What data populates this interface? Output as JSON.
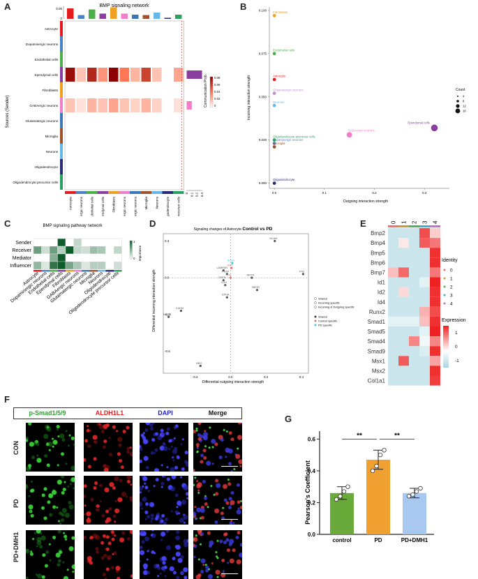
{
  "panels": {
    "A": "A",
    "B": "B",
    "C": "C",
    "D": "D",
    "E": "E",
    "F": "F",
    "G": "G"
  },
  "panelA": {
    "title": "BMP signaling network",
    "ylabel": "Sources (Sender)",
    "legend_title": "Communication Prob.",
    "legend_ticks": [
      "0.08",
      "0.06",
      "0.04",
      "0.02",
      "0"
    ],
    "top_ticks": [
      "0.05",
      "0"
    ],
    "right_ticks": [
      "0",
      "0.1",
      "0.2",
      "0.3"
    ],
    "senders": [
      "Astrocyte",
      "Dopaminergic neurons",
      "Endothelial cells",
      "Ependymal cells",
      "Fibroblasts",
      "GABAergic neurons",
      "Glutamatergic neurons",
      "Microglia",
      "Neurons",
      "Oligodendrocyte",
      "Oligodendrocyte precursor cells"
    ],
    "receivers": [
      "Astrocyte",
      "Dopaminergic neurons",
      "Endothelial cells",
      "Ependymal cells",
      "Fibroblasts",
      "GABAergic neurons",
      "Glutamatergic neurons",
      "Microglia",
      "Neurons",
      "Oligodendrocyte",
      "Oligodendrocyte precursor cells"
    ],
    "cell_colors": [
      "#e41a1c",
      "#4a82c4",
      "#4daf4a",
      "#8a3ea0",
      "#f0a020",
      "#f07ec8",
      "#3a78b8",
      "#a0522d",
      "#66b8e8",
      "#2a2a78",
      "#2ca060"
    ],
    "matrix": [
      [
        0,
        0,
        0,
        0,
        0,
        0,
        0,
        0,
        0,
        0,
        0
      ],
      [
        0,
        0,
        0,
        0,
        0,
        0,
        0,
        0,
        0,
        0,
        0
      ],
      [
        0,
        0,
        0,
        0,
        0,
        0,
        0,
        0,
        0,
        0,
        0
      ],
      [
        0.085,
        0.02,
        0.075,
        0.035,
        0.09,
        0.045,
        0.025,
        0.065,
        0.02,
        0,
        0.03
      ],
      [
        0,
        0,
        0,
        0,
        0,
        0,
        0,
        0,
        0,
        0,
        0
      ],
      [
        0.02,
        0.01,
        0.025,
        0.02,
        0.03,
        0.02,
        0.015,
        0.025,
        0.015,
        0,
        0.01
      ],
      [
        0,
        0,
        0,
        0,
        0,
        0,
        0,
        0,
        0,
        0,
        0
      ],
      [
        0,
        0,
        0,
        0,
        0,
        0,
        0,
        0,
        0,
        0,
        0
      ],
      [
        0,
        0,
        0,
        0,
        0,
        0,
        0,
        0,
        0,
        0,
        0
      ],
      [
        0,
        0,
        0,
        0,
        0,
        0,
        0,
        0,
        0,
        0,
        0
      ],
      [
        0,
        0,
        0,
        0,
        0,
        0,
        0,
        0,
        0,
        0,
        0
      ]
    ],
    "top_bars": [
      0.05,
      0.018,
      0.045,
      0.025,
      0.055,
      0.025,
      0.02,
      0.018,
      0.03,
      0.005,
      0.02
    ],
    "right_bars": [
      0,
      0,
      0,
      0.3,
      0,
      0.1,
      0,
      0,
      0,
      0,
      0
    ]
  },
  "panelB": {
    "xlabel": "Outgoing interaction strength",
    "ylabel": "Incoming interaction strength",
    "x_ticks": [
      "0.0",
      "0.1",
      "0.2",
      "0.3"
    ],
    "y_ticks": [
      "0.000",
      "0.025",
      "0.050",
      "0.075",
      "0.100"
    ],
    "legend_title": "Count",
    "legend_items": [
      "4",
      "8",
      "12",
      "16"
    ],
    "points": [
      {
        "label": "Fibroblasts",
        "x": 0.0,
        "y": 0.097,
        "size": 4,
        "color": "#f0a020"
      },
      {
        "label": "Endothelial cells",
        "x": 0.0,
        "y": 0.075,
        "size": 4,
        "color": "#4daf4a"
      },
      {
        "label": "Astrocyte",
        "x": 0.0,
        "y": 0.06,
        "size": 4,
        "color": "#e41a1c"
      },
      {
        "label": "Glutamatergic neurons",
        "x": 0.0,
        "y": 0.052,
        "size": 4,
        "color": "#c090d0"
      },
      {
        "label": "Neurons",
        "x": 0.0,
        "y": 0.045,
        "size": 4,
        "color": "#66b8e8"
      },
      {
        "label": "Oligodendrocyte precursor cells",
        "x": 0.0,
        "y": 0.025,
        "size": 4,
        "color": "#2ca060"
      },
      {
        "label": "Dopaminergic neurons",
        "x": 0.0,
        "y": 0.023,
        "size": 4,
        "color": "#4a82c4"
      },
      {
        "label": "Microglia",
        "x": 0.0,
        "y": 0.021,
        "size": 4,
        "color": "#a0522d"
      },
      {
        "label": "GABAergic neurons",
        "x": 0.15,
        "y": 0.028,
        "size": 11,
        "color": "#f07ec8"
      },
      {
        "label": "Ependymal cells",
        "x": 0.32,
        "y": 0.032,
        "size": 15,
        "color": "#8a3ea0"
      },
      {
        "label": "Oligodendrocyte",
        "x": 0.0,
        "y": 0.0,
        "size": 4,
        "color": "#2a2a78"
      }
    ],
    "xlim": [
      -0.01,
      0.35
    ],
    "ylim": [
      -0.003,
      0.102
    ]
  },
  "panelC": {
    "title": "BMP signaling pathway network",
    "roles": [
      "Sender",
      "Receiver",
      "Mediator",
      "Influencer"
    ],
    "cells": [
      "Astrocyte",
      "Dopaminergic neurons",
      "Endothelial cells",
      "Ependymal cells",
      "Fibroblasts",
      "GABAergic neurons",
      "Glutamatergic neurons",
      "Microglia",
      "Neurons",
      "Oligodendrocyte",
      "Oligodendrocyte precursor cells"
    ],
    "legend_title": "Importance",
    "legend_ticks": [
      "1",
      "0"
    ],
    "matrix": [
      [
        0,
        0,
        0,
        1,
        0,
        0.25,
        0,
        0,
        0,
        0,
        0
      ],
      [
        0.6,
        0.2,
        0.6,
        0.3,
        1,
        0.25,
        0.2,
        0.4,
        0.35,
        0,
        0.25
      ],
      [
        0,
        0,
        0.5,
        1,
        0,
        0,
        0,
        0,
        0,
        0,
        0
      ],
      [
        0.45,
        0.15,
        0.85,
        1,
        0.55,
        0.35,
        0.15,
        0.3,
        0.3,
        0,
        0.2
      ]
    ]
  },
  "panelD": {
    "title": "Signaling changes of Astrocyte",
    "title_bold": "Control vs PD",
    "xlabel": "Differential outgoing interaction strength",
    "ylabel": "Differential incoming interaction strength",
    "x_ticks": [
      "-0.2",
      "0.0",
      "0.2",
      "0.4"
    ],
    "y_ticks": [
      "0.3",
      "0.0",
      "-0.3",
      "-0.6"
    ],
    "xlim": [
      -0.38,
      0.44
    ],
    "ylim": [
      -0.78,
      0.36
    ],
    "legend_shape": [
      "Shared",
      "Incoming specific",
      "Incoming & Outgoing specific"
    ],
    "legend_color": [
      "Shared",
      "Control specific",
      "PD specific"
    ],
    "legend_colors": [
      "#333333",
      "#e07070",
      "#40c8e0"
    ],
    "points": [
      {
        "label": "NCAM",
        "x": 0.25,
        "y": 0.3,
        "color": "#555555"
      },
      {
        "label": "PTN",
        "x": 0.41,
        "y": 0.03,
        "color": "#555555"
      },
      {
        "label": "LAMININ",
        "x": -0.04,
        "y": 0.06,
        "color": "#555555"
      },
      {
        "label": "Bmp4",
        "x": 0.01,
        "y": 0.12,
        "color": "#40c8e0"
      },
      {
        "label": "BMP",
        "x": 0.005,
        "y": 0.08,
        "color": "#e07070"
      },
      {
        "label": "PSAP",
        "x": -0.02,
        "y": 0.03,
        "color": "#555555"
      },
      {
        "label": "CNTN",
        "x": -0.04,
        "y": -0.02,
        "color": "#555555"
      },
      {
        "label": "CDH",
        "x": -0.03,
        "y": -0.06,
        "color": "#555555"
      },
      {
        "label": "MK",
        "x": 0.0,
        "y": 0.0,
        "color": "#e07070"
      },
      {
        "label": "NRXN",
        "x": 0.12,
        "y": 0.0,
        "color": "#555555"
      },
      {
        "label": "NEGR",
        "x": 0.15,
        "y": -0.1,
        "color": "#555555"
      },
      {
        "label": "EPHA",
        "x": -0.02,
        "y": -0.16,
        "color": "#555555"
      },
      {
        "label": "CADM",
        "x": -0.28,
        "y": -0.27,
        "color": "#555555"
      },
      {
        "label": "NEGR",
        "x": -0.35,
        "y": -0.32,
        "color": "#555555"
      },
      {
        "label": "NRG",
        "x": -0.17,
        "y": -0.72,
        "color": "#555555"
      }
    ]
  },
  "panelE": {
    "genes": [
      "Bmp2",
      "Bmp4",
      "Bmp5",
      "Bmp6",
      "Bmp7",
      "Id1",
      "Id2",
      "Id4",
      "Runx2",
      "Smad1",
      "Smad5",
      "Smad4",
      "Smad9",
      "Msx1",
      "Msx2",
      "Col1a1"
    ],
    "clusters": [
      "0",
      "1",
      "2",
      "3",
      "4"
    ],
    "cluster_colors": [
      "#f07070",
      "#c0a030",
      "#50b060",
      "#40b0d0",
      "#c070d0"
    ],
    "identity_title": "Identity",
    "expression_title": "Expression",
    "expression_ticks": [
      "1",
      "0",
      "-1"
    ],
    "matrix": [
      [
        -0.6,
        -0.6,
        -0.6,
        1.3,
        0.4
      ],
      [
        -0.6,
        0.2,
        -0.6,
        1.2,
        1.0
      ],
      [
        -0.6,
        -0.6,
        -0.6,
        -0.6,
        1.5
      ],
      [
        -0.6,
        -0.6,
        -0.6,
        -0.6,
        1.5
      ],
      [
        0.5,
        1.1,
        -0.6,
        -0.6,
        1.0
      ],
      [
        -0.6,
        -0.6,
        -0.6,
        -0.3,
        1.6
      ],
      [
        -0.6,
        0.3,
        -0.6,
        -0.6,
        1.5
      ],
      [
        -0.6,
        -0.6,
        -0.6,
        -0.6,
        1.5
      ],
      [
        -0.6,
        -0.6,
        -0.6,
        0.6,
        1.3
      ],
      [
        -0.3,
        -0.3,
        -0.3,
        0.5,
        1.5
      ],
      [
        -0.6,
        -0.6,
        -0.6,
        -0.3,
        1.6
      ],
      [
        -0.6,
        -0.6,
        0.9,
        -0.1,
        0.9
      ],
      [
        -0.6,
        -0.6,
        -0.6,
        -0.4,
        1.5
      ],
      [
        -0.6,
        1.2,
        -0.6,
        -0.6,
        0.7
      ],
      [
        -0.6,
        -0.6,
        -0.6,
        -0.6,
        1.5
      ],
      [
        -0.6,
        -0.6,
        -0.6,
        -0.6,
        1.4
      ]
    ]
  },
  "panelF": {
    "columns": [
      "p-Smad1/5/9",
      "ALDH1L1",
      "DAPI",
      "Merge"
    ],
    "column_colors": [
      "#2ea02e",
      "#e02020",
      "#2020d0",
      "#111111"
    ],
    "rows": [
      "CON",
      "PD",
      "PD+DMH1"
    ]
  },
  "panelG": {
    "ylabel": "Pearson's Coefficient",
    "y_ticks": [
      "0.0",
      "0.2",
      "0.4",
      "0.6"
    ],
    "sig": [
      "**",
      "**"
    ],
    "chart_data": {
      "type": "bar",
      "categories": [
        "control",
        "PD",
        "PD+DMH1"
      ],
      "values": [
        0.26,
        0.47,
        0.26
      ],
      "errors": [
        0.04,
        0.06,
        0.03
      ],
      "points": [
        [
          0.22,
          0.24,
          0.27,
          0.3
        ],
        [
          0.4,
          0.43,
          0.5,
          0.53
        ],
        [
          0.24,
          0.25,
          0.27,
          0.29
        ]
      ],
      "colors": [
        "#6aaa3a",
        "#f0a030",
        "#a8c8f0"
      ],
      "ylim": [
        0,
        0.65
      ]
    }
  }
}
